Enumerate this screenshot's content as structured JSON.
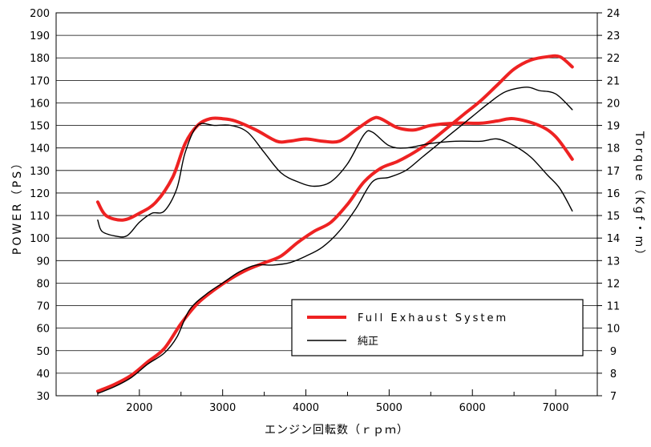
{
  "chart_data": {
    "type": "line",
    "xlabel": "エンジン回転数（ｒｐｍ）",
    "ylabel_left": "POWER（PS）",
    "ylabel_right": "Torque（Kgf・m）",
    "x_ticks": [
      2000,
      3000,
      4000,
      5000,
      6000,
      7000
    ],
    "left_axis": {
      "min": 30,
      "max": 200,
      "ticks": [
        30,
        40,
        50,
        60,
        70,
        80,
        90,
        100,
        110,
        120,
        130,
        140,
        150,
        160,
        170,
        180,
        190,
        200
      ]
    },
    "right_axis": {
      "min": 7,
      "max": 24,
      "ticks": [
        7,
        8,
        9,
        10,
        11,
        12,
        13,
        14,
        15,
        16,
        17,
        18,
        19,
        20,
        21,
        22,
        23,
        24
      ]
    },
    "x_range": [
      1500,
      7200
    ],
    "grid": "horizontal",
    "legend": {
      "placement": "bottom-right",
      "entries": [
        {
          "label": "Full Exhaust System",
          "color": "#ee2222"
        },
        {
          "label": "純正",
          "color": "#000000"
        }
      ]
    },
    "series": [
      {
        "name": "Full Exhaust System",
        "kind": "power",
        "axis": "left",
        "color": "#ee2222",
        "points": [
          [
            1500,
            32
          ],
          [
            1700,
            35
          ],
          [
            1900,
            39
          ],
          [
            2100,
            45
          ],
          [
            2300,
            51
          ],
          [
            2500,
            62
          ],
          [
            2700,
            71
          ],
          [
            2900,
            77
          ],
          [
            3100,
            82
          ],
          [
            3300,
            86
          ],
          [
            3500,
            89
          ],
          [
            3700,
            92
          ],
          [
            3900,
            98
          ],
          [
            4100,
            103
          ],
          [
            4300,
            107
          ],
          [
            4500,
            115
          ],
          [
            4700,
            125
          ],
          [
            4900,
            131
          ],
          [
            5100,
            134
          ],
          [
            5300,
            138
          ],
          [
            5500,
            143
          ],
          [
            5700,
            149
          ],
          [
            5900,
            155
          ],
          [
            6100,
            161
          ],
          [
            6300,
            168
          ],
          [
            6500,
            175
          ],
          [
            6700,
            179
          ],
          [
            6900,
            180.5
          ],
          [
            7050,
            180.5
          ],
          [
            7200,
            176
          ]
        ]
      },
      {
        "name": "Full Exhaust System",
        "kind": "torque",
        "axis": "right",
        "color": "#ee2222",
        "points": [
          [
            1500,
            15.6
          ],
          [
            1600,
            15.0
          ],
          [
            1800,
            14.8
          ],
          [
            2000,
            15.1
          ],
          [
            2200,
            15.6
          ],
          [
            2400,
            16.7
          ],
          [
            2550,
            18.2
          ],
          [
            2700,
            19.0
          ],
          [
            2850,
            19.3
          ],
          [
            3000,
            19.3
          ],
          [
            3150,
            19.2
          ],
          [
            3400,
            18.8
          ],
          [
            3650,
            18.3
          ],
          [
            3800,
            18.3
          ],
          [
            4000,
            18.4
          ],
          [
            4200,
            18.3
          ],
          [
            4400,
            18.3
          ],
          [
            4600,
            18.8
          ],
          [
            4800,
            19.3
          ],
          [
            4900,
            19.3
          ],
          [
            5100,
            18.9
          ],
          [
            5300,
            18.8
          ],
          [
            5500,
            19.0
          ],
          [
            5800,
            19.1
          ],
          [
            6100,
            19.1
          ],
          [
            6300,
            19.2
          ],
          [
            6500,
            19.3
          ],
          [
            6800,
            19.0
          ],
          [
            7000,
            18.5
          ],
          [
            7200,
            17.5
          ]
        ]
      },
      {
        "name": "純正",
        "kind": "power",
        "axis": "left",
        "color": "#000000",
        "points": [
          [
            1500,
            31
          ],
          [
            1700,
            34
          ],
          [
            1900,
            38
          ],
          [
            2100,
            44
          ],
          [
            2300,
            49
          ],
          [
            2450,
            56
          ],
          [
            2600,
            68
          ],
          [
            2800,
            75
          ],
          [
            3000,
            80
          ],
          [
            3200,
            85
          ],
          [
            3400,
            88
          ],
          [
            3600,
            88
          ],
          [
            3800,
            89
          ],
          [
            4000,
            92
          ],
          [
            4200,
            96
          ],
          [
            4400,
            103
          ],
          [
            4600,
            113
          ],
          [
            4800,
            125
          ],
          [
            5000,
            127
          ],
          [
            5200,
            130
          ],
          [
            5400,
            136
          ],
          [
            5600,
            142
          ],
          [
            5800,
            148
          ],
          [
            6000,
            154
          ],
          [
            6200,
            160
          ],
          [
            6400,
            165
          ],
          [
            6650,
            167
          ],
          [
            6800,
            165.5
          ],
          [
            7000,
            164
          ],
          [
            7200,
            157
          ]
        ]
      },
      {
        "name": "純正",
        "kind": "torque",
        "axis": "right",
        "color": "#000000",
        "points": [
          [
            1500,
            14.8
          ],
          [
            1550,
            14.3
          ],
          [
            1700,
            14.1
          ],
          [
            1850,
            14.1
          ],
          [
            2000,
            14.7
          ],
          [
            2150,
            15.1
          ],
          [
            2300,
            15.2
          ],
          [
            2450,
            16.2
          ],
          [
            2550,
            17.8
          ],
          [
            2700,
            19.0
          ],
          [
            2900,
            19.0
          ],
          [
            3100,
            19.0
          ],
          [
            3300,
            18.7
          ],
          [
            3500,
            17.8
          ],
          [
            3700,
            16.9
          ],
          [
            3900,
            16.5
          ],
          [
            4100,
            16.3
          ],
          [
            4300,
            16.5
          ],
          [
            4500,
            17.3
          ],
          [
            4700,
            18.6
          ],
          [
            4800,
            18.7
          ],
          [
            5000,
            18.1
          ],
          [
            5200,
            18.0
          ],
          [
            5500,
            18.2
          ],
          [
            5800,
            18.3
          ],
          [
            6100,
            18.3
          ],
          [
            6300,
            18.4
          ],
          [
            6500,
            18.1
          ],
          [
            6700,
            17.6
          ],
          [
            6900,
            16.8
          ],
          [
            7050,
            16.2
          ],
          [
            7200,
            15.2
          ]
        ]
      }
    ]
  }
}
